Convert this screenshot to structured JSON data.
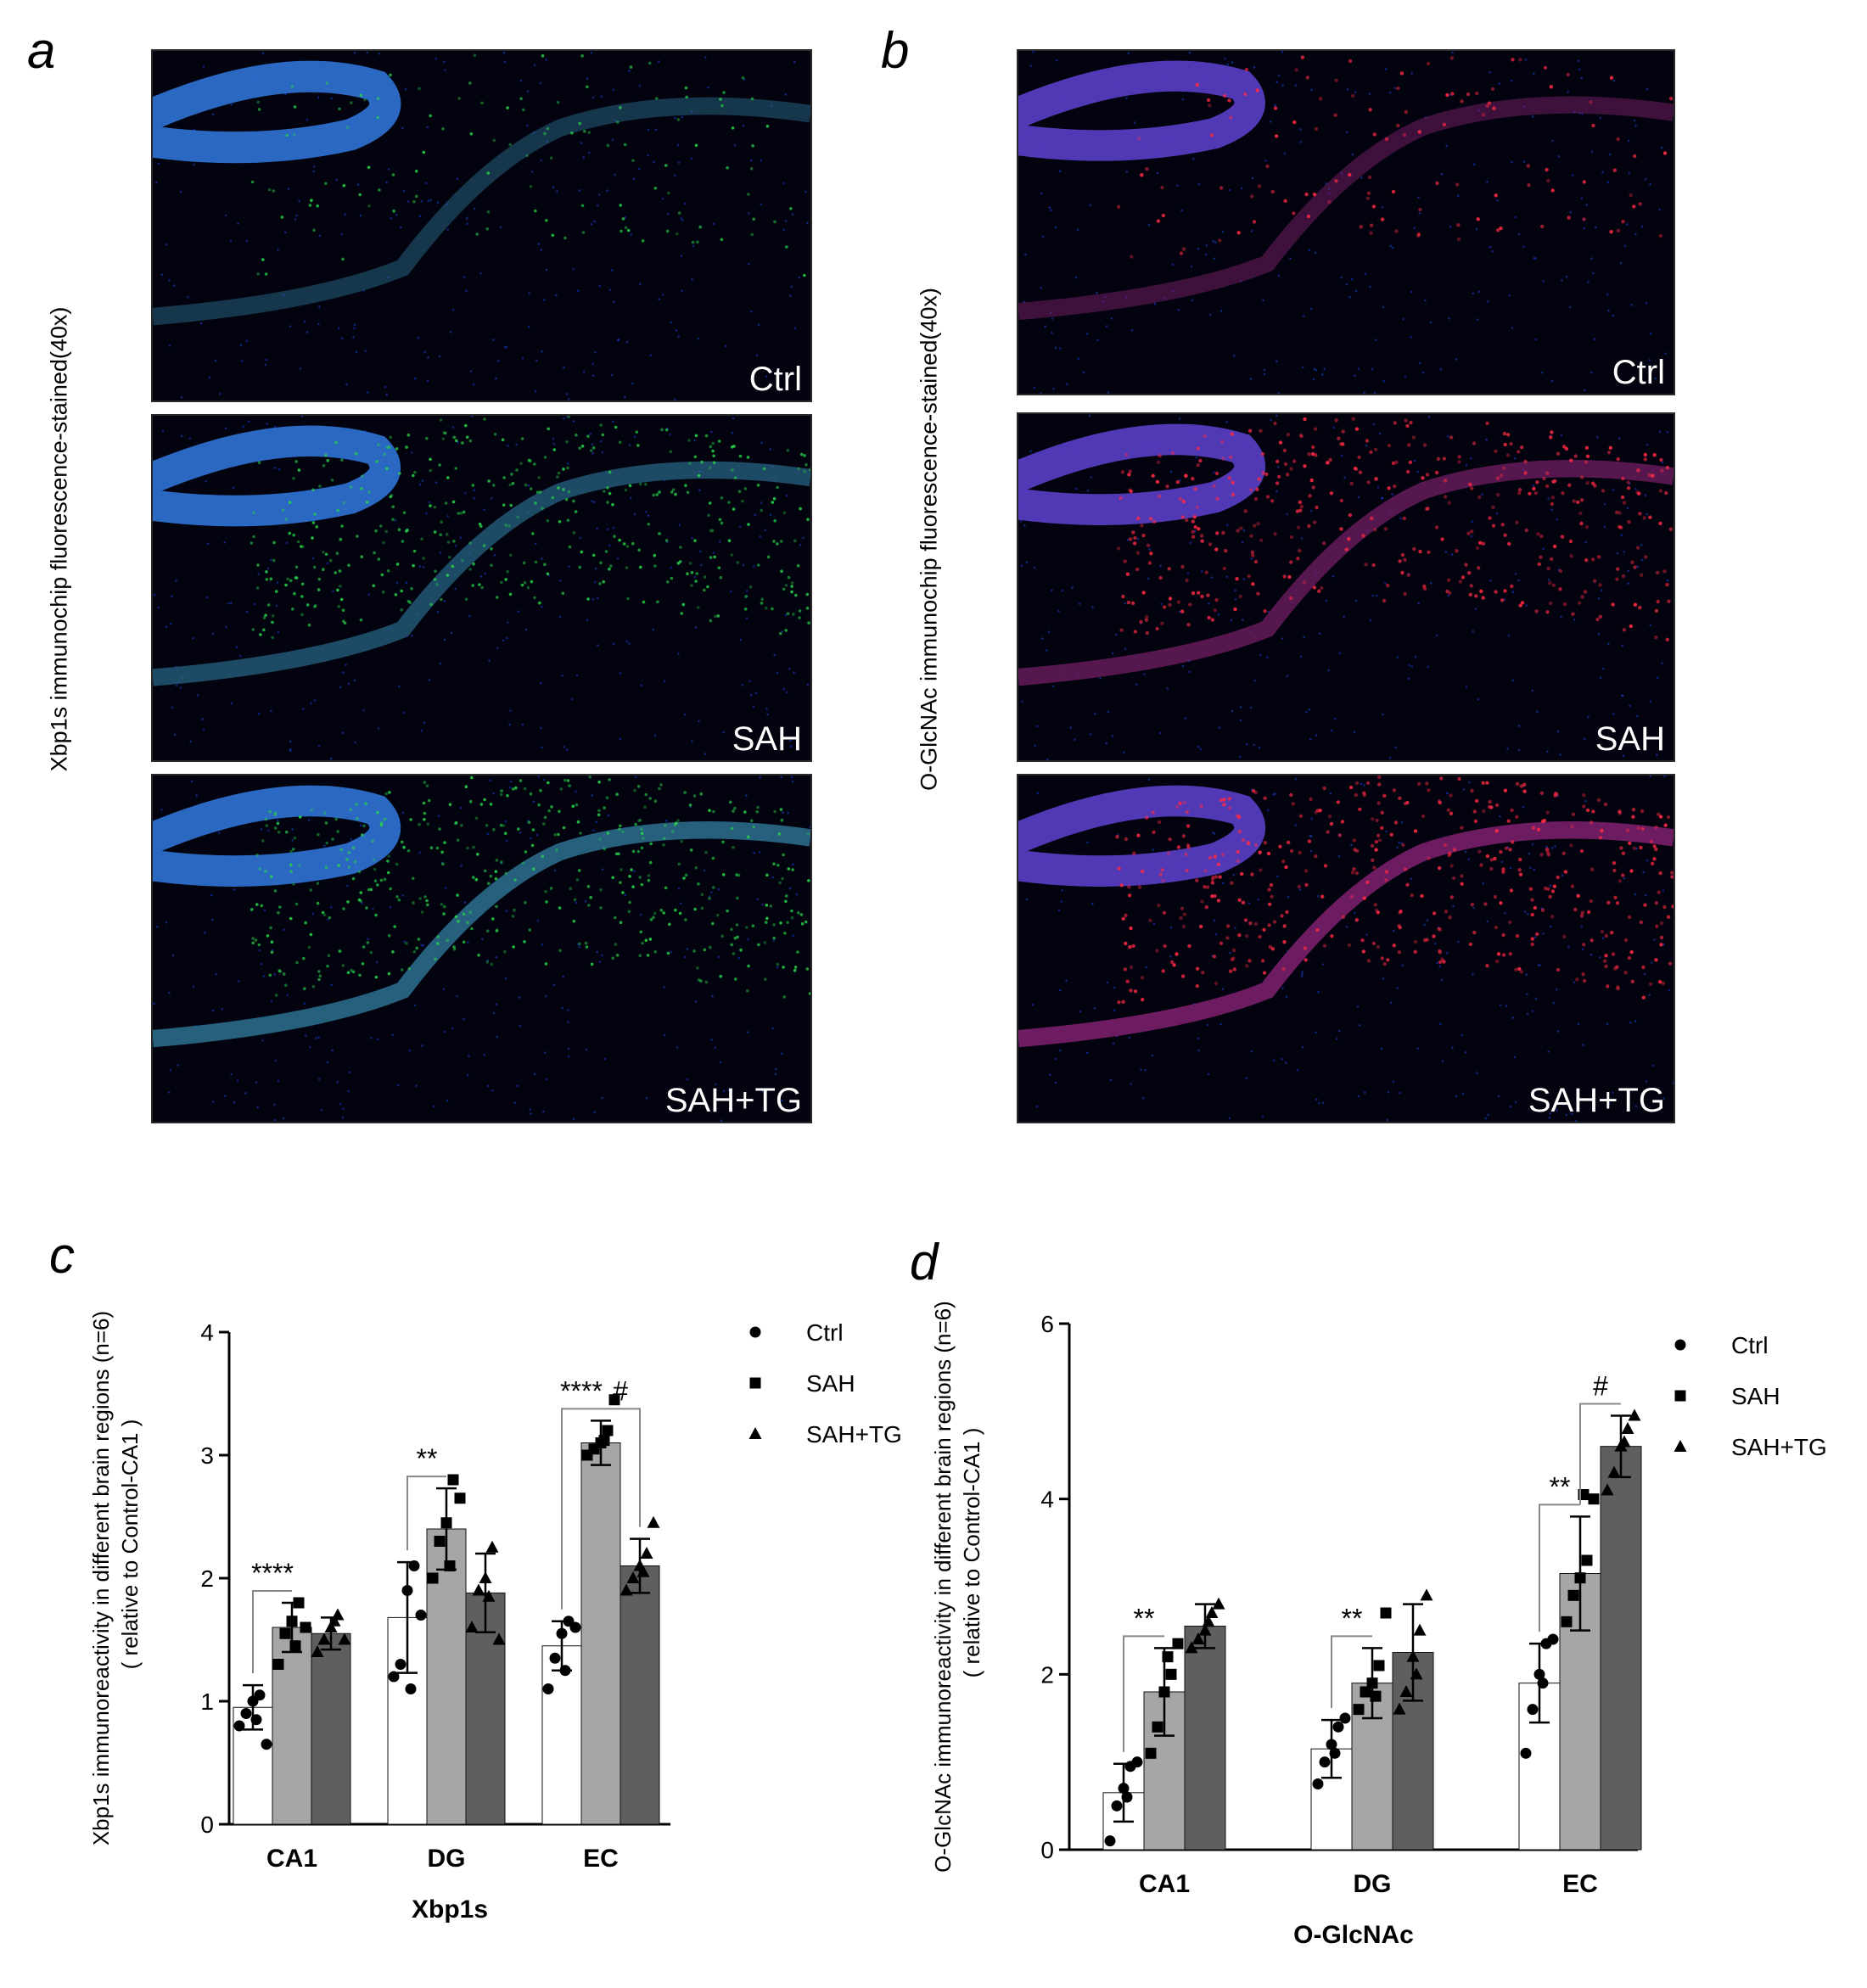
{
  "panels": {
    "a": {
      "letter": "a",
      "ylabel": "Xbp1s immunochip fluorescence-stained(40x)",
      "images": [
        {
          "label": "Ctrl"
        },
        {
          "label": "SAH"
        },
        {
          "label": "SAH+TG"
        }
      ],
      "stain_color": "#28d24a"
    },
    "b": {
      "letter": "b",
      "ylabel": "O-GlcNAc immunochip fluorescence-stained(40x)",
      "images": [
        {
          "label": "Ctrl"
        },
        {
          "label": "SAH"
        },
        {
          "label": "SAH+TG"
        }
      ],
      "stain_color": "#ff2a45"
    },
    "c": {
      "letter": "c"
    },
    "d": {
      "letter": "d"
    }
  },
  "colors": {
    "ctrl_bar": "#ffffff",
    "sah_bar": "#a6a6a6",
    "sahtg_bar": "#5f5f5f",
    "background_dapi": "#1d3fd8"
  },
  "chart_data": [
    {
      "type": "bar",
      "xlabel": "Xbp1s",
      "ylabel": "Xbp1s immunoreactivity in different brain regions (n=6)",
      "ylabel2": "( relative  to Control-CA1 )",
      "categories": [
        "CA1",
        "DG",
        "EC"
      ],
      "ylim": [
        0,
        4
      ],
      "yticks": [
        0,
        1,
        2,
        3,
        4
      ],
      "series": [
        {
          "name": "Ctrl",
          "values": [
            0.95,
            1.68,
            1.45
          ],
          "errors": [
            0.18,
            0.45,
            0.2
          ],
          "points": [
            [
              0.8,
              0.9,
              1.0,
              1.05,
              0.65,
              0.85
            ],
            [
              1.2,
              1.3,
              1.9,
              2.1,
              1.7,
              1.1
            ],
            [
              1.1,
              1.35,
              1.55,
              1.65,
              1.6,
              1.25
            ]
          ]
        },
        {
          "name": "SAH",
          "values": [
            1.6,
            2.4,
            3.1
          ],
          "errors": [
            0.2,
            0.33,
            0.18
          ],
          "points": [
            [
              1.3,
              1.55,
              1.65,
              1.8,
              1.6,
              1.45
            ],
            [
              2.0,
              2.3,
              2.45,
              2.8,
              2.65,
              2.1
            ],
            [
              3.0,
              3.05,
              3.1,
              3.2,
              3.45,
              3.12
            ]
          ]
        },
        {
          "name": "SAH+TG",
          "values": [
            1.55,
            1.88,
            2.1
          ],
          "errors": [
            0.13,
            0.32,
            0.22
          ],
          "points": [
            [
              1.4,
              1.5,
              1.6,
              1.7,
              1.5,
              1.65
            ],
            [
              1.6,
              1.9,
              2.0,
              2.25,
              1.5,
              1.85
            ],
            [
              1.9,
              2.0,
              2.1,
              2.2,
              2.45,
              2.05
            ]
          ]
        }
      ],
      "significance": [
        {
          "text": "****",
          "category": "CA1",
          "from": "Ctrl",
          "to": "SAH"
        },
        {
          "text": "**",
          "category": "DG",
          "from": "Ctrl",
          "to": "SAH"
        },
        {
          "text": "****",
          "category": "EC",
          "from": "Ctrl",
          "to": "SAH"
        },
        {
          "text": "#",
          "category": "EC",
          "from": "SAH",
          "to": "SAH+TG"
        }
      ],
      "legend": [
        "Ctrl",
        "SAH",
        "SAH+TG"
      ],
      "legend_position": "right"
    },
    {
      "type": "bar",
      "xlabel": "O-GlcNAc",
      "ylabel": "O-GlcNAc  immunoreactivity in different brain regions (n=6)",
      "ylabel2": "( relative  to Control-CA1 )",
      "categories": [
        "CA1",
        "DG",
        "EC"
      ],
      "ylim": [
        0,
        6
      ],
      "yticks": [
        0,
        2,
        4,
        6
      ],
      "series": [
        {
          "name": "Ctrl",
          "values": [
            0.65,
            1.15,
            1.9
          ],
          "errors": [
            0.33,
            0.33,
            0.45
          ],
          "points": [
            [
              0.1,
              0.5,
              0.7,
              0.95,
              1.0,
              0.6
            ],
            [
              0.75,
              1.0,
              1.2,
              1.4,
              1.5,
              1.1
            ],
            [
              1.1,
              1.6,
              2.0,
              2.35,
              2.4,
              1.9
            ]
          ]
        },
        {
          "name": "SAH",
          "values": [
            1.8,
            1.9,
            3.15
          ],
          "errors": [
            0.5,
            0.4,
            0.65
          ],
          "points": [
            [
              1.1,
              1.4,
              1.8,
              2.0,
              2.35,
              2.2
            ],
            [
              1.6,
              1.8,
              1.9,
              2.1,
              2.7,
              1.75
            ],
            [
              2.6,
              2.9,
              3.1,
              3.3,
              4.0,
              4.05
            ]
          ]
        },
        {
          "name": "SAH+TG",
          "values": [
            2.55,
            2.25,
            4.6
          ],
          "errors": [
            0.25,
            0.55,
            0.35
          ],
          "points": [
            [
              2.3,
              2.4,
              2.5,
              2.7,
              2.8,
              2.6
            ],
            [
              1.6,
              1.8,
              2.2,
              2.5,
              2.9,
              2.0
            ],
            [
              4.1,
              4.3,
              4.6,
              4.8,
              4.95,
              4.65
            ]
          ]
        }
      ],
      "significance": [
        {
          "text": "**",
          "category": "CA1",
          "from": "Ctrl",
          "to": "SAH"
        },
        {
          "text": "**",
          "category": "DG",
          "from": "Ctrl",
          "to": "SAH"
        },
        {
          "text": "**",
          "category": "EC",
          "from": "Ctrl",
          "to": "SAH"
        },
        {
          "text": "#",
          "category": "EC",
          "from": "SAH",
          "to": "SAH+TG"
        }
      ],
      "legend": [
        "Ctrl",
        "SAH",
        "SAH+TG"
      ],
      "legend_position": "right"
    }
  ]
}
